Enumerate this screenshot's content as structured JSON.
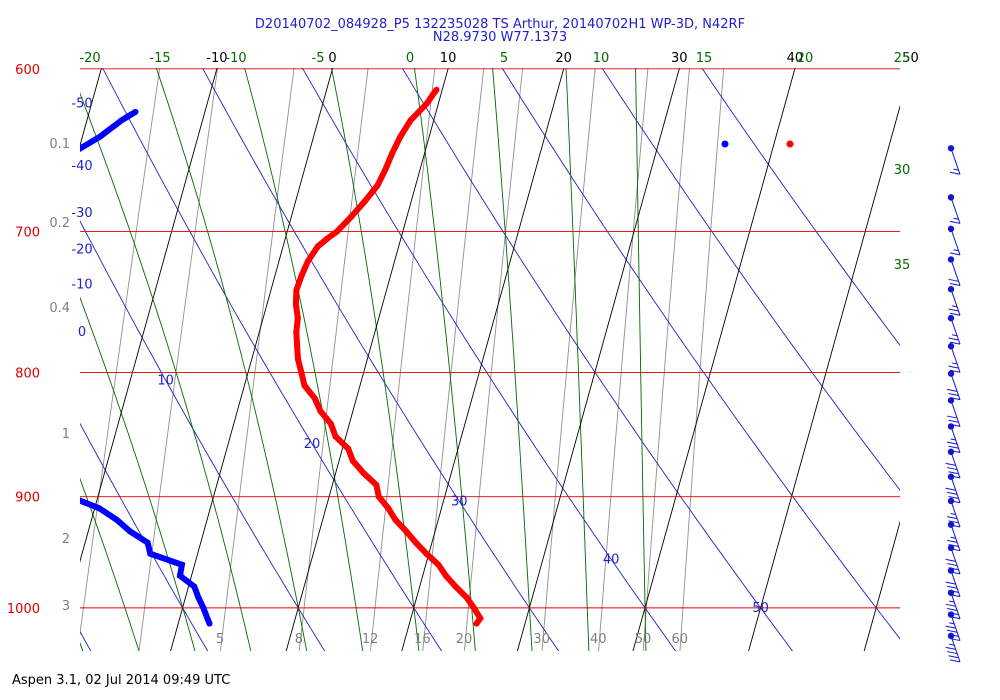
{
  "chart_data": {
    "type": "line",
    "title": "D20140702_084928_P5 132235028 TS Arthur, 20140702H1 WP-3D, N42RF",
    "subtitle": "N28.9730 W77.1373",
    "footer": "Aspen 3.1, 02 Jul 2014  09:49 UTC",
    "pressure_levels": [
      600,
      700,
      800,
      900,
      1000
    ],
    "pressure_range": [
      600,
      1050
    ],
    "temperature_ticks": [
      -10,
      0,
      10,
      20,
      30,
      40,
      50
    ],
    "temperature_range": [
      -40,
      50
    ],
    "potential_temperature_labels": [
      -50,
      -40,
      -30,
      -20,
      -10,
      0,
      10,
      20,
      30,
      40,
      50
    ],
    "mixing_ratio_labels_bottom": [
      5,
      8,
      12,
      16,
      20,
      30,
      40,
      50,
      60
    ],
    "mixing_ratio_labels_left": [
      "0.1",
      "0.2",
      "0.4",
      "1",
      "2",
      "3"
    ],
    "equivalent_potential_temperature_labels": [
      "-20",
      "-15",
      "-10",
      "-5",
      "0",
      "5",
      "10",
      "15",
      "20",
      "25",
      "30",
      "35"
    ],
    "colors": {
      "isobar": "#e00000",
      "isotherm": "#000000",
      "dry_adiabat": "#2020c0",
      "moist_adiabat": "#006a00",
      "mixing_ratio": "#909090",
      "temperature": "#ff0000",
      "dewpoint": "#0000ff",
      "wind": "#1515d0"
    },
    "series": [
      {
        "name": "Temperature",
        "pressure": [
          612,
          615,
          620,
          630,
          640,
          650,
          660,
          670,
          680,
          690,
          700,
          705,
          710,
          720,
          730,
          740,
          750,
          760,
          770,
          780,
          790,
          800,
          810,
          820,
          830,
          840,
          850,
          860,
          870,
          880,
          890,
          900,
          910,
          920,
          930,
          940,
          950,
          960,
          970,
          980,
          990,
          1000,
          1010,
          1015
        ],
        "values": [
          9.5,
          9.3,
          9.0,
          8.0,
          7.5,
          7.2,
          7.0,
          6.7,
          6.0,
          5.2,
          4.3,
          3.6,
          3.0,
          2.5,
          2.3,
          2.2,
          2.5,
          3.0,
          3.2,
          3.6,
          4.0,
          4.6,
          5.2,
          6.4,
          7.2,
          8.4,
          9.1,
          10.5,
          11.2,
          12.4,
          13.8,
          14.3,
          15.4,
          16.3,
          17.5,
          18.6,
          19.8,
          21.1,
          22.0,
          23.1,
          24.3,
          25.2,
          26.0,
          25.8
        ]
      },
      {
        "name": "Dewpoint",
        "pressure": [
          625,
          630,
          640,
          650,
          660,
          670,
          680,
          690,
          700,
          710,
          720,
          730,
          740,
          750,
          760,
          770,
          780,
          790,
          800,
          810,
          820,
          830,
          840,
          850,
          860,
          870,
          880,
          890,
          900,
          910,
          920,
          930,
          940,
          950,
          960,
          970,
          980,
          990,
          1000,
          1010,
          1015
        ],
        "values": [
          -16.0,
          -17.0,
          -18.5,
          -20.5,
          -21.5,
          -21.5,
          -23.5,
          -24.0,
          -25.8,
          -25.8,
          -26.7,
          -27.2,
          -27.1,
          -27.2,
          -28.7,
          -34.4,
          -33.6,
          -27.6,
          -25.0,
          -24.5,
          -22.8,
          -21.0,
          -20.1,
          -17.6,
          -17.2,
          -13.0,
          -13.3,
          -12.6,
          -12.4,
          -9.6,
          -7.8,
          -6.4,
          -4.6,
          -4.1,
          -1.1,
          -1.0,
          0.5,
          1.1,
          1.8,
          2.4,
          2.7
        ]
      },
      {
        "name": "Wind barbs",
        "pressure": [
          610,
          630,
          660,
          680,
          700,
          720,
          740,
          760,
          780,
          800,
          820,
          840,
          860,
          880,
          900,
          920,
          940,
          960,
          980,
          1000,
          1020
        ],
        "wind_speed_kt": [
          10,
          15,
          15,
          15,
          20,
          25,
          25,
          25,
          30,
          30,
          35,
          40,
          40,
          35,
          35,
          40,
          40,
          45,
          45,
          45,
          50
        ]
      }
    ],
    "loose_points": [
      {
        "series": "Temperature",
        "pressure": 612,
        "value": 9.0
      },
      {
        "series": "Dewpoint",
        "pressure": 612,
        "value": 0.2
      }
    ]
  }
}
